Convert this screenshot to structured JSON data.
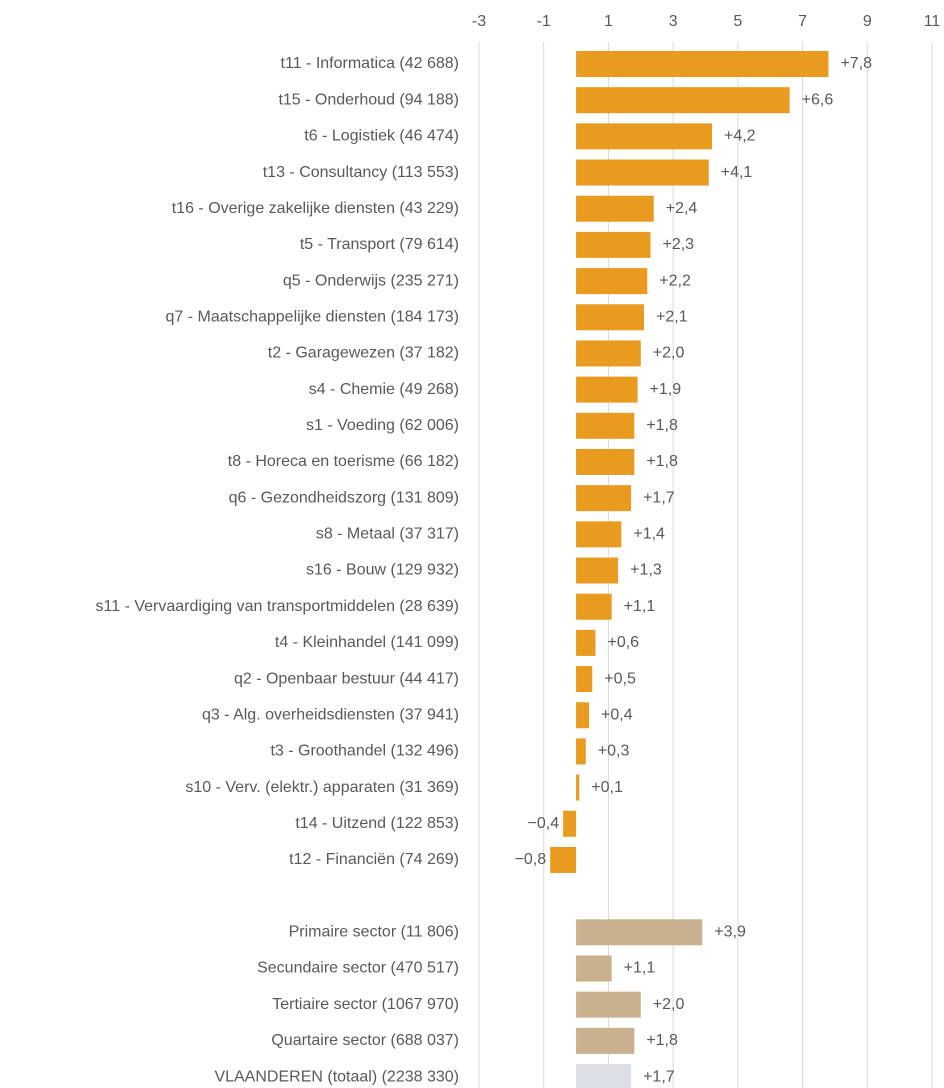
{
  "chart_data": {
    "type": "hbar",
    "categories": [
      "t11 - Informatica (42 688)",
      "t15 - Onderhoud (94 188)",
      "t6 - Logistiek (46 474)",
      "t13 - Consultancy (113 553)",
      "t16 - Overige zakelijke diensten (43 229)",
      "t5 - Transport (79 614)",
      "q5 - Onderwijs (235 271)",
      "q7 - Maatschappelijke diensten (184 173)",
      "t2 - Garagewezen (37 182)",
      "s4 - Chemie (49 268)",
      "s1 - Voeding (62 006)",
      "t8 - Horeca en toerisme (66 182)",
      "q6 - Gezondheidszorg (131 809)",
      "s8 - Metaal (37 317)",
      "s16 - Bouw (129 932)",
      "s11 - Vervaardiging van transportmiddelen (28 639)",
      "t4 - Kleinhandel (141 099)",
      "q2 - Openbaar bestuur (44 417)",
      "q3 - Alg. overheidsdiensten (37 941)",
      "t3 - Groothandel (132 496)",
      "s10 - Verv. (elektr.) apparaten (31 369)",
      "t14 - Uitzend (122 853)",
      "t12 - Financiën (74 269)",
      null,
      "Primaire sector (11 806)",
      "Secundaire sector (470 517)",
      "Tertiaire sector (1067 970)",
      "Quartaire sector (688 037)",
      "VLAANDEREN (totaal) (2238 330)"
    ],
    "values": [
      7.8,
      6.6,
      4.2,
      4.1,
      2.4,
      2.3,
      2.2,
      2.1,
      2.0,
      1.9,
      1.8,
      1.8,
      1.7,
      1.4,
      1.3,
      1.1,
      0.6,
      0.5,
      0.4,
      0.3,
      0.1,
      -0.4,
      -0.8,
      null,
      3.9,
      1.1,
      2.0,
      1.8,
      1.7
    ],
    "value_labels": [
      "+7,8",
      "+6,6",
      "+4,2",
      "+4,1",
      "+2,4",
      "+2,3",
      "+2,2",
      "+2,1",
      "+2,0",
      "+1,9",
      "+1,8",
      "+1,8",
      "+1,7",
      "+1,4",
      "+1,3",
      "+1,1",
      "+0,6",
      "+0,5",
      "+0,4",
      "+0,3",
      "+0,1",
      "−0,4",
      "−0,8",
      null,
      "+3,9",
      "+1,1",
      "+2,0",
      "+1,8",
      "+1,7"
    ],
    "colors": [
      "#e89b1f",
      "#e89b1f",
      "#e89b1f",
      "#e89b1f",
      "#e89b1f",
      "#e89b1f",
      "#e89b1f",
      "#e89b1f",
      "#e89b1f",
      "#e89b1f",
      "#e89b1f",
      "#e89b1f",
      "#e89b1f",
      "#e89b1f",
      "#e89b1f",
      "#e89b1f",
      "#e89b1f",
      "#e89b1f",
      "#e89b1f",
      "#e89b1f",
      "#e89b1f",
      "#e89b1f",
      "#e89b1f",
      null,
      "#c9b18f",
      "#c9b18f",
      "#c9b18f",
      "#c9b18f",
      "#d9dfe4"
    ],
    "xlim": [
      -3,
      11
    ],
    "xticks": [
      -3,
      -1,
      1,
      3,
      5,
      7,
      9,
      11
    ],
    "grid": true
  }
}
